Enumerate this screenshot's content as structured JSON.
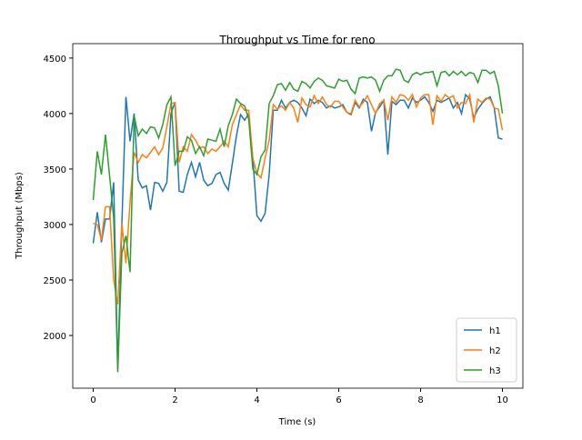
{
  "chart_data": {
    "type": "line",
    "title": "Throughput vs Time for reno",
    "x_label": "Time (s)",
    "y_label": "Throughput (Mbps)",
    "x": [
      0,
      0.1,
      0.2,
      0.3,
      0.4,
      0.5,
      0.6,
      0.7,
      0.8,
      0.9,
      1,
      1.1,
      1.2,
      1.3,
      1.4,
      1.5,
      1.6,
      1.7,
      1.8,
      1.9,
      2,
      2.1,
      2.2,
      2.3,
      2.4,
      2.5,
      2.6,
      2.7,
      2.8,
      2.9,
      3,
      3.1,
      3.2,
      3.3,
      3.4,
      3.5,
      3.6,
      3.7,
      3.8,
      3.9,
      4,
      4.1,
      4.2,
      4.3,
      4.4,
      4.5,
      4.6,
      4.7,
      4.8,
      4.9,
      5,
      5.1,
      5.2,
      5.3,
      5.4,
      5.5,
      5.6,
      5.7,
      5.8,
      5.9,
      6,
      6.1,
      6.2,
      6.3,
      6.4,
      6.5,
      6.6,
      6.7,
      6.8,
      6.9,
      7,
      7.1,
      7.2,
      7.3,
      7.4,
      7.5,
      7.6,
      7.7,
      7.8,
      7.9,
      8,
      8.1,
      8.2,
      8.3,
      8.4,
      8.5,
      8.6,
      8.7,
      8.8,
      8.9,
      9,
      9.1,
      9.2,
      9.3,
      9.4,
      9.5,
      9.6,
      9.7,
      9.8,
      9.9,
      10
    ],
    "series": [
      {
        "name": "h1",
        "color": "#1f77b4",
        "values": [
          2830,
          3110,
          2840,
          3050,
          3050,
          3380,
          1700,
          3000,
          4150,
          3750,
          4000,
          3400,
          3330,
          3350,
          3130,
          3380,
          3370,
          3300,
          3380,
          4000,
          4100,
          3300,
          3290,
          3450,
          3560,
          3430,
          3560,
          3400,
          3350,
          3370,
          3450,
          3470,
          3370,
          3310,
          3550,
          3800,
          3990,
          3940,
          4000,
          3600,
          3080,
          3030,
          3100,
          3450,
          4030,
          4030,
          4120,
          4050,
          4100,
          4120,
          4100,
          4050,
          3980,
          4130,
          4090,
          4120,
          4100,
          4050,
          4070,
          4050,
          4060,
          4080,
          4010,
          3990,
          4100,
          4050,
          4130,
          4100,
          3840,
          4010,
          4060,
          4120,
          3630,
          4110,
          4080,
          4120,
          4120,
          4050,
          4140,
          4100,
          4120,
          4150,
          4100,
          4020,
          4120,
          4100,
          4120,
          4140,
          4050,
          4100,
          4000,
          4170,
          4130,
          3960,
          4040,
          4090,
          4130,
          4150,
          4050,
          3780,
          3770
        ]
      },
      {
        "name": "h2",
        "color": "#ff7f0e",
        "values": [
          3010,
          3000,
          2860,
          3160,
          3160,
          2500,
          2280,
          3010,
          2650,
          3200,
          3650,
          3560,
          3630,
          3600,
          3650,
          3700,
          3630,
          3690,
          3880,
          4090,
          4100,
          3560,
          3700,
          3660,
          3810,
          3760,
          3690,
          3700,
          3640,
          3680,
          3660,
          3700,
          3750,
          3700,
          3900,
          3990,
          4080,
          4030,
          4030,
          3600,
          3460,
          3420,
          3600,
          3760,
          4080,
          4040,
          4070,
          4030,
          4100,
          4050,
          3920,
          4140,
          4080,
          4060,
          4160,
          4090,
          4150,
          4080,
          4060,
          4110,
          4110,
          4060,
          4010,
          4000,
          4120,
          4060,
          4100,
          4160,
          4080,
          4000,
          4090,
          4120,
          3940,
          4150,
          4100,
          4170,
          4160,
          4120,
          4170,
          4060,
          4140,
          4170,
          4170,
          3900,
          4160,
          4110,
          4170,
          4140,
          4160,
          4050,
          4100,
          4090,
          4170,
          3920,
          4130,
          4100,
          4140,
          4130,
          4050,
          4040,
          3850
        ]
      },
      {
        "name": "h3",
        "color": "#2ca02c",
        "values": [
          3220,
          3660,
          3450,
          3810,
          3440,
          3060,
          1670,
          2740,
          2900,
          2570,
          3980,
          3800,
          3860,
          3820,
          3880,
          3870,
          3780,
          3900,
          4080,
          4150,
          3530,
          3660,
          3660,
          3790,
          3760,
          3640,
          3700,
          3620,
          3770,
          3760,
          3750,
          3860,
          3700,
          3890,
          3990,
          4130,
          4090,
          4070,
          3950,
          3500,
          3450,
          3610,
          3670,
          4090,
          4160,
          4260,
          4270,
          4210,
          4280,
          4220,
          4200,
          4290,
          4270,
          4230,
          4290,
          4320,
          4300,
          4250,
          4240,
          4230,
          4310,
          4290,
          4300,
          4220,
          4180,
          4320,
          4330,
          4320,
          4330,
          4300,
          4200,
          4300,
          4340,
          4340,
          4400,
          4390,
          4300,
          4280,
          4350,
          4370,
          4350,
          4370,
          4370,
          4380,
          4250,
          4370,
          4380,
          4340,
          4380,
          4350,
          4380,
          4340,
          4370,
          4360,
          4280,
          4390,
          4390,
          4360,
          4380,
          4250,
          4000
        ]
      }
    ],
    "xlim": [
      -0.5,
      10.5
    ],
    "ylim": [
      1525,
      4630
    ],
    "xticks": [
      0,
      2,
      4,
      6,
      8,
      10
    ],
    "yticks": [
      2000,
      2500,
      3000,
      3500,
      4000,
      4500
    ],
    "legend": "lower right"
  }
}
